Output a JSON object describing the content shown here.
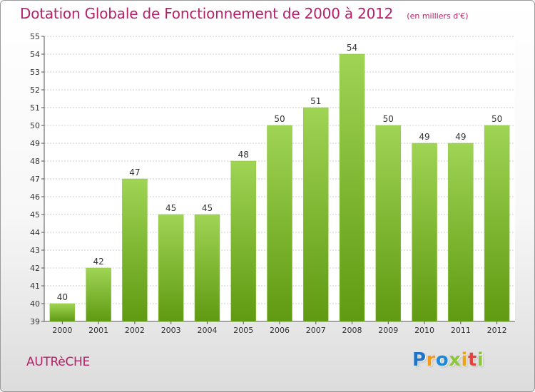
{
  "header": {
    "title": "Dotation Globale de Fonctionnement de 2000 à 2012",
    "subtitle": "(en milliers d'€)"
  },
  "footer": {
    "commune": "AUTRèCHE",
    "logo_letters": [
      "P",
      "r",
      "o",
      "x",
      "i",
      "t",
      "i"
    ]
  },
  "colors": {
    "title": "#b5206a",
    "bar_light": "#9fd454",
    "bar_dark": "#5f9a12",
    "grid": "#cfcfcf",
    "axis": "#555555"
  },
  "chart_data": {
    "type": "bar",
    "title": "Dotation Globale de Fonctionnement de 2000 à 2012",
    "subtitle": "(en milliers d'€)",
    "xlabel": "",
    "ylabel": "",
    "categories": [
      "2000",
      "2001",
      "2002",
      "2003",
      "2004",
      "2005",
      "2006",
      "2007",
      "2008",
      "2009",
      "2010",
      "2011",
      "2012"
    ],
    "values": [
      40,
      42,
      47,
      45,
      45,
      48,
      50,
      51,
      54,
      50,
      49,
      49,
      50
    ],
    "ylim": [
      39,
      55
    ],
    "yticks": [
      39,
      40,
      41,
      42,
      43,
      44,
      45,
      46,
      47,
      48,
      49,
      50,
      51,
      52,
      53,
      54,
      55
    ],
    "grid": true,
    "data_labels": true
  }
}
